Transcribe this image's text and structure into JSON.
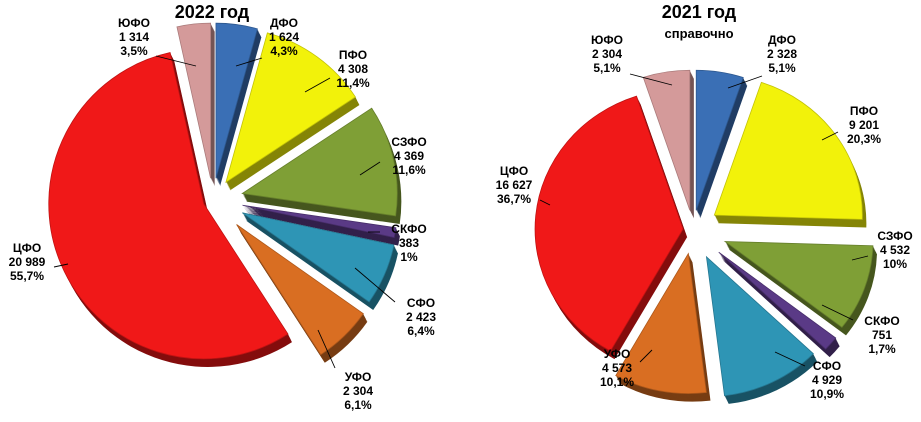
{
  "chart_data": [
    {
      "type": "pie",
      "title": "2022 год",
      "subtitle": "",
      "series": [
        {
          "name": "ДФО",
          "value_label": "1 624",
          "value": 1624,
          "percent_label": "4,3%",
          "percent": 4.3,
          "color": "#3A6FB5"
        },
        {
          "name": "ПФО",
          "value_label": "4 308",
          "value": 4308,
          "percent_label": "11,4%",
          "percent": 11.4,
          "color": "#F2F20A"
        },
        {
          "name": "СЗФО",
          "value_label": "4 369",
          "value": 4369,
          "percent_label": "11,6%",
          "percent": 11.6,
          "color": "#7F9F36"
        },
        {
          "name": "СКФО",
          "value_label": "383",
          "value": 383,
          "percent_label": "1%",
          "percent": 1.0,
          "color": "#5A3A86"
        },
        {
          "name": "СФО",
          "value_label": "2 423",
          "value": 2423,
          "percent_label": "6,4%",
          "percent": 6.4,
          "color": "#2E95B5"
        },
        {
          "name": "УФО",
          "value_label": "2 304",
          "value": 2304,
          "percent_label": "6,1%",
          "percent": 6.1,
          "color": "#D96E22"
        },
        {
          "name": "ЦФО",
          "value_label": "20 989",
          "value": 20989,
          "percent_label": "55,7%",
          "percent": 55.7,
          "color": "#F01818"
        },
        {
          "name": "ЮФО",
          "value_label": "1 314",
          "value": 1314,
          "percent_label": "3,5%",
          "percent": 3.5,
          "color": "#D49A9A"
        }
      ]
    },
    {
      "type": "pie",
      "title": "2021 год",
      "subtitle": "справочно",
      "series": [
        {
          "name": "ДФО",
          "value_label": "2 328",
          "value": 2328,
          "percent_label": "5,1%",
          "percent": 5.1,
          "color": "#3A6FB5"
        },
        {
          "name": "ПФО",
          "value_label": "9 201",
          "value": 9201,
          "percent_label": "20,3%",
          "percent": 20.3,
          "color": "#F2F20A"
        },
        {
          "name": "СЗФО",
          "value_label": "4 532",
          "value": 4532,
          "percent_label": "10%",
          "percent": 10.0,
          "color": "#7F9F36"
        },
        {
          "name": "СКФО",
          "value_label": "751",
          "value": 751,
          "percent_label": "1,7%",
          "percent": 1.7,
          "color": "#5A3A86"
        },
        {
          "name": "СФО",
          "value_label": "4 929",
          "value": 4929,
          "percent_label": "10,9%",
          "percent": 10.9,
          "color": "#2E95B5"
        },
        {
          "name": "УФО",
          "value_label": "4 573",
          "value": 4573,
          "percent_label": "10,1%",
          "percent": 10.1,
          "color": "#D96E22"
        },
        {
          "name": "ЦФО",
          "value_label": "16 627",
          "value": 16627,
          "percent_label": "36,7%",
          "percent": 36.7,
          "color": "#F01818"
        },
        {
          "name": "ЮФО",
          "value_label": "2 304",
          "value": 2304,
          "percent_label": "5,1%",
          "percent": 5.1,
          "color": "#D49A9A"
        }
      ]
    }
  ]
}
